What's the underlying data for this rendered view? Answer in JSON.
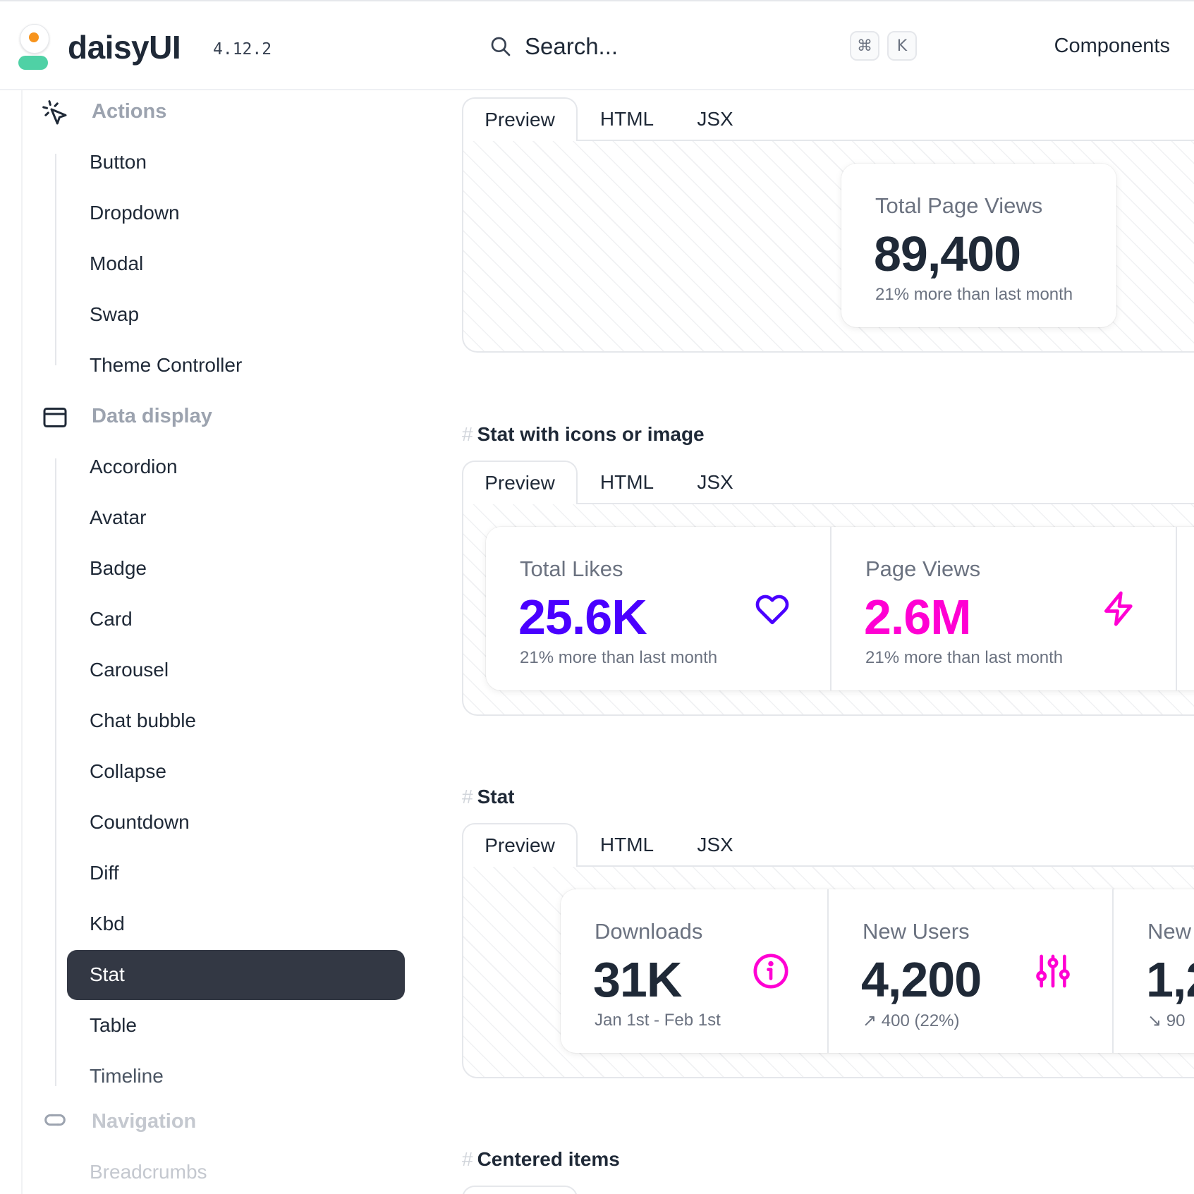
{
  "header": {
    "brand": "daisyUI",
    "version": "4.12.2",
    "search_placeholder": "Search...",
    "kbd_cmd": "⌘",
    "kbd_k": "K",
    "nav_components": "Components"
  },
  "sidebar": {
    "groups": [
      {
        "title": "Actions",
        "icon": "cursor-click-icon",
        "items": [
          "Button",
          "Dropdown",
          "Modal",
          "Swap",
          "Theme Controller"
        ]
      },
      {
        "title": "Data display",
        "icon": "window-icon",
        "items": [
          "Accordion",
          "Avatar",
          "Badge",
          "Card",
          "Carousel",
          "Chat bubble",
          "Collapse",
          "Countdown",
          "Diff",
          "Kbd",
          "Stat",
          "Table",
          "Timeline"
        ]
      },
      {
        "title": "Navigation",
        "icon": "link-icon",
        "items": [
          "Breadcrumbs"
        ]
      }
    ],
    "active_item": "Stat"
  },
  "tabs": {
    "preview": "Preview",
    "html": "HTML",
    "jsx": "JSX"
  },
  "sections": [
    {
      "heading": "",
      "stats": [
        {
          "title": "Total Page Views",
          "value": "89,400",
          "desc": "21% more than last month"
        }
      ]
    },
    {
      "heading": "Stat with icons or image",
      "stats": [
        {
          "title": "Total Likes",
          "value": "25.6K",
          "desc": "21% more than last month",
          "icon": "heart-icon",
          "color": "#4a00ff"
        },
        {
          "title": "Page Views",
          "value": "2.6M",
          "desc": "21% more than last month",
          "icon": "bolt-icon",
          "color": "#ff00d3"
        }
      ]
    },
    {
      "heading": "Stat",
      "stats": [
        {
          "title": "Downloads",
          "value": "31K",
          "desc": "Jan 1st - Feb 1st",
          "icon": "info-icon",
          "color": "#ff00d3"
        },
        {
          "title": "New Users",
          "value": "4,200",
          "desc": "↗︎ 400 (22%)",
          "icon": "sliders-icon",
          "color": "#ff00d3"
        },
        {
          "title": "New",
          "value": "1,2",
          "desc": "↘︎ 90"
        }
      ]
    },
    {
      "heading": "Centered items"
    }
  ],
  "hash": "#"
}
